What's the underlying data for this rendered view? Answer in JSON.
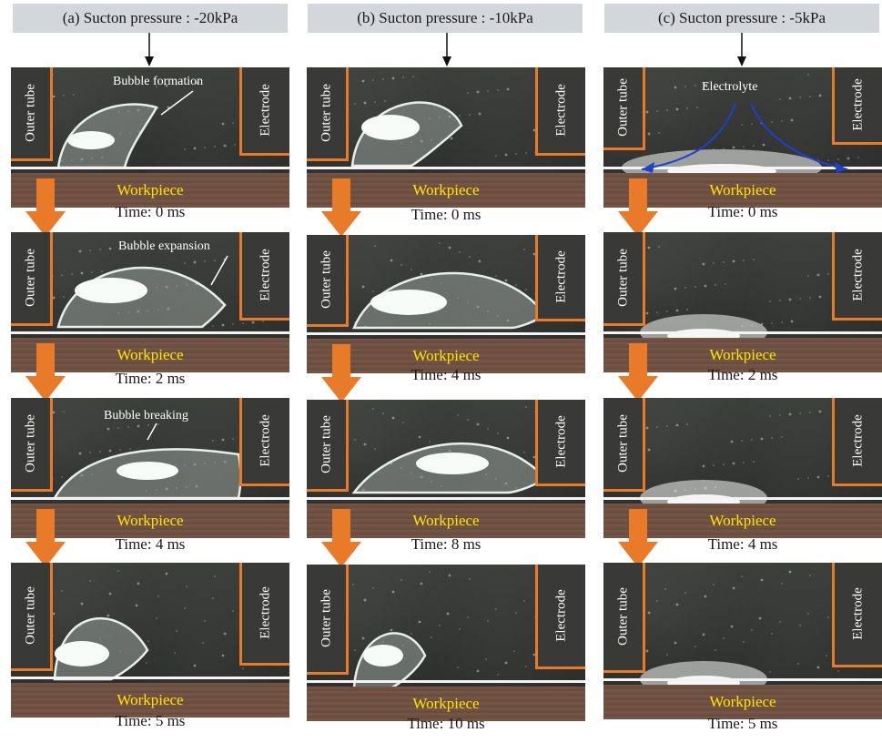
{
  "columns": [
    {
      "header": "(a) Sucton pressure : -20kPa",
      "frames": [
        {
          "time": "Time: 0 ms",
          "annotation": "Bubble formation"
        },
        {
          "time": "Time: 2 ms",
          "annotation": "Bubble expansion"
        },
        {
          "time": "Time: 4 ms",
          "annotation": "Bubble breaking"
        },
        {
          "time": "Time: 5 ms",
          "annotation": ""
        }
      ]
    },
    {
      "header": "(b) Sucton pressure : -10kPa",
      "frames": [
        {
          "time": "Time: 0 ms",
          "annotation": ""
        },
        {
          "time": "Time: 4 ms",
          "annotation": ""
        },
        {
          "time": "Time: 8 ms",
          "annotation": ""
        },
        {
          "time": "Time: 10 ms",
          "annotation": ""
        }
      ]
    },
    {
      "header": "(c) Sucton pressure : -5kPa",
      "frames": [
        {
          "time": "Time: 0 ms",
          "annotation": "Electrolyte"
        },
        {
          "time": "Time: 2 ms",
          "annotation": ""
        },
        {
          "time": "Time: 4 ms",
          "annotation": ""
        },
        {
          "time": "Time: 5 ms",
          "annotation": ""
        }
      ]
    }
  ],
  "labels": {
    "outer_tube": "Outer tube",
    "electrode": "Electrode",
    "workpiece": "Workpiece"
  },
  "colors": {
    "arrow": "#e97a2a",
    "workpiece_text": "#ffe600",
    "header_bg": "#d3d6da",
    "electrolyte_arrow": "#1f3fd0"
  }
}
